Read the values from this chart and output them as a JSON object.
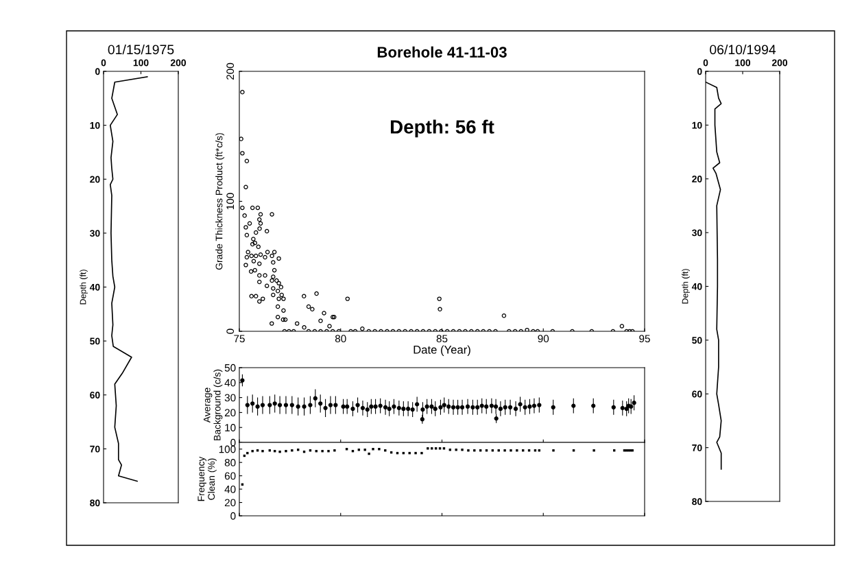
{
  "chart_data": [
    {
      "type": "line",
      "title": "01/15/1975",
      "ylabel": "Depth (ft)",
      "xlim": [
        0,
        200
      ],
      "xticks": [
        0,
        100,
        200
      ],
      "ylim": [
        80,
        0
      ],
      "yticks": [
        0,
        10,
        20,
        30,
        40,
        50,
        60,
        70,
        80
      ],
      "marker": "none",
      "series": [
        {
          "color": "#000000",
          "x": [
            117,
            30,
            22,
            37,
            18,
            25,
            20,
            22,
            25,
            18,
            22,
            20,
            22,
            25,
            30,
            22,
            25,
            22,
            26,
            75,
            50,
            30,
            34,
            30,
            40,
            40,
            48,
            40,
            90
          ],
          "values": [
            1,
            2,
            5,
            8,
            10,
            13,
            16,
            18,
            20,
            21,
            23,
            30,
            35,
            38,
            40,
            43,
            47,
            49,
            51,
            53,
            56,
            58,
            62,
            66,
            69,
            72,
            73,
            75,
            76
          ]
        }
      ]
    },
    {
      "type": "scatter",
      "title": "Borehole 41-11-03",
      "xlabel": "Date (Year)",
      "ylabel": "Grade Thickness Product (ft*c/s)",
      "annotations": [
        "Depth: 56 ft"
      ],
      "xlim": [
        75,
        95
      ],
      "xticks": [
        75,
        80,
        85,
        90,
        95
      ],
      "ylim": [
        0,
        200
      ],
      "yticks": [
        0,
        100,
        200
      ],
      "marker": "circle",
      "series": [
        {
          "color": "#000000",
          "x": [
            75.15,
            75.09,
            75.15,
            75.37,
            75.32,
            75.15,
            75.26,
            75.65,
            75.91,
            76.05,
            76.61,
            75.99,
            76.05,
            75.51,
            75.32,
            75.37,
            75.82,
            76.36,
            76.0,
            75.69,
            75.77,
            75.65,
            75.94,
            75.43,
            75.37,
            75.6,
            75.82,
            76.05,
            76.39,
            76.73,
            76.27,
            76.61,
            76.95,
            75.71,
            75.32,
            75.99,
            76.67,
            76.73,
            75.58,
            75.77,
            75.99,
            76.27,
            76.67,
            76.84,
            75.99,
            76.61,
            76.95,
            76.36,
            76.67,
            77.06,
            76.9,
            76.67,
            77.09,
            75.6,
            75.82,
            76.16,
            75.99,
            76.95,
            77.18,
            76.9,
            77.18,
            78.19,
            78.81,
            78.42,
            78.6,
            80.34,
            79.18,
            79.68,
            76.9,
            77.27,
            84.87,
            84.9,
            88.06,
            76.6,
            77.16,
            77.85,
            79.01,
            79.45,
            79.61,
            77.23,
            77.45,
            77.68,
            78.2,
            78.42,
            78.72,
            79.01,
            79.31,
            79.61,
            79.91,
            80.5,
            80.72,
            81.07,
            81.39,
            81.69,
            81.99,
            82.29,
            82.58,
            82.88,
            83.18,
            83.48,
            83.77,
            84.07,
            84.37,
            84.67,
            84.96,
            85.26,
            85.56,
            85.86,
            86.15,
            86.45,
            86.75,
            87.04,
            87.34,
            87.64,
            88.31,
            88.61,
            88.9,
            89.2,
            89.5,
            89.72,
            90.46,
            91.43,
            92.39,
            93.44,
            93.88,
            94.11,
            94.26,
            94.4
          ],
          "values": [
            184,
            148,
            137,
            131,
            111,
            95,
            89,
            95,
            95,
            90,
            90,
            86,
            83,
            83,
            80,
            74,
            76,
            77,
            79,
            71,
            68,
            67,
            65,
            61,
            57,
            58,
            58,
            59,
            61,
            61,
            57,
            58,
            56,
            54,
            51,
            52,
            53,
            47,
            46,
            47,
            43,
            43,
            42,
            39,
            38,
            39,
            37,
            35,
            33,
            34,
            31,
            28,
            28,
            27,
            27,
            25,
            23,
            25,
            25,
            19,
            16,
            27,
            29,
            19,
            17,
            25,
            14,
            11,
            11,
            9,
            25,
            17,
            12,
            6,
            9,
            6,
            8,
            4,
            11,
            0,
            0,
            0,
            3,
            0,
            0,
            0,
            0,
            0,
            0,
            0,
            0,
            2,
            0,
            0,
            0,
            0,
            0,
            0,
            0,
            0,
            0,
            0,
            0,
            0,
            0,
            0,
            0,
            0,
            0,
            0,
            0,
            0,
            0,
            0,
            0,
            0,
            0,
            1,
            0,
            0,
            0,
            0,
            0,
            0,
            4,
            0,
            0,
            0
          ]
        }
      ]
    },
    {
      "type": "line",
      "title": "06/10/1994",
      "ylabel": "Depth (ft)",
      "xlim": [
        0,
        200
      ],
      "xticks": [
        0,
        100,
        200
      ],
      "ylim": [
        80,
        0
      ],
      "yticks": [
        0,
        10,
        20,
        30,
        40,
        50,
        60,
        70,
        80
      ],
      "marker": "none",
      "series": [
        {
          "color": "#000000",
          "x": [
            0,
            30,
            35,
            42,
            25,
            25,
            30,
            38,
            20,
            28,
            40,
            30,
            32,
            32,
            30,
            35,
            35,
            30,
            35,
            42,
            38,
            30,
            42,
            42
          ],
          "values": [
            2,
            3,
            5,
            6,
            7,
            10,
            15,
            17,
            18,
            19,
            22,
            25,
            35,
            40,
            48,
            50,
            55,
            60,
            62,
            65,
            68,
            69,
            71,
            74
          ]
        }
      ]
    },
    {
      "type": "scatter",
      "ylabel": "Average\nBackground (c/s)",
      "xlim": [
        75,
        95
      ],
      "xticks": [
        {
          "value": 75,
          "label": null
        },
        {
          "value": 80,
          "label": null
        },
        {
          "value": 85,
          "label": null
        },
        {
          "value": 90,
          "label": null
        },
        {
          "value": 95,
          "label": null
        }
      ],
      "ylim": [
        0,
        50
      ],
      "yticks": [
        0,
        10,
        20,
        30,
        40,
        50
      ],
      "tick_labels": "y",
      "marker": "circle",
      "series": [
        {
          "color": "#000000",
          "x": [
            75.15,
            75.4,
            75.65,
            75.9,
            76.15,
            76.5,
            76.75,
            77.0,
            77.3,
            77.6,
            77.9,
            78.2,
            78.5,
            78.75,
            79.0,
            79.25,
            79.5,
            79.75,
            80.13,
            80.32,
            80.6,
            80.84,
            81.09,
            81.32,
            81.51,
            81.72,
            81.96,
            82.21,
            82.4,
            82.63,
            82.88,
            83.1,
            83.33,
            83.55,
            83.77,
            84.03,
            84.05,
            84.26,
            84.49,
            84.67,
            84.93,
            85.11,
            85.33,
            85.56,
            85.78,
            86.0,
            86.27,
            86.52,
            86.75,
            86.97,
            87.19,
            87.45,
            87.66,
            87.68,
            87.89,
            88.12,
            88.37,
            88.64,
            88.86,
            89.1,
            89.33,
            89.55,
            89.8,
            90.49,
            91.49,
            92.47,
            93.47,
            93.91,
            94.11,
            94.21,
            94.33,
            94.48
          ],
          "values": [
            41.5,
            25,
            26,
            24,
            25,
            25,
            26,
            25,
            25,
            25,
            24,
            24,
            25,
            29.5,
            26,
            23,
            25,
            25,
            24,
            24,
            22.5,
            25,
            23,
            22,
            24,
            24,
            24.5,
            23.5,
            22.5,
            24,
            23,
            22.5,
            22.5,
            22,
            25.5,
            15.5,
            22,
            24,
            24,
            22.5,
            23.5,
            25,
            24,
            23.5,
            23.5,
            23.5,
            24,
            23.5,
            23.5,
            24.5,
            24,
            24.5,
            24,
            16,
            22.5,
            23.5,
            23.5,
            22.5,
            25.5,
            23.5,
            24,
            24.5,
            25,
            23.5,
            24.5,
            24.5,
            23.5,
            23,
            22.5,
            24.5,
            24,
            26.5
          ],
          "errors": [
            4,
            6,
            6,
            6,
            6,
            6,
            6,
            6,
            6,
            6,
            6,
            6,
            6,
            6,
            6,
            6,
            6,
            6,
            5,
            5,
            5,
            5,
            5,
            5,
            5,
            5,
            5,
            5,
            5,
            5,
            5,
            5,
            5,
            5,
            5,
            3,
            5,
            5,
            5,
            5,
            5,
            5,
            5,
            5,
            5,
            5,
            5,
            5,
            5,
            5,
            5,
            5,
            5,
            3,
            5,
            5,
            5,
            5,
            5,
            5,
            5,
            5,
            5,
            5,
            5,
            5,
            5,
            5,
            5,
            5,
            5,
            5
          ]
        }
      ]
    },
    {
      "type": "scatter",
      "ylabel": "Frequency\nClean (%)",
      "xlim": [
        75,
        95
      ],
      "xticks": [
        {
          "value": 75,
          "label": null
        },
        {
          "value": 80,
          "label": null
        },
        {
          "value": 85,
          "label": null
        },
        {
          "value": 90,
          "label": null
        },
        {
          "value": 95,
          "label": null
        }
      ],
      "ylim": [
        0,
        110
      ],
      "yticks": [
        0,
        20,
        40,
        60,
        80,
        100
      ],
      "tick_labels": "y",
      "marker": "square",
      "series": [
        {
          "color": "#000000",
          "x": [
            75.15,
            75.25,
            75.4,
            75.65,
            75.9,
            76.15,
            76.5,
            76.75,
            77.0,
            77.3,
            77.6,
            77.9,
            78.2,
            78.5,
            78.8,
            79.1,
            79.4,
            79.7,
            80.3,
            80.6,
            80.9,
            81.2,
            81.4,
            81.6,
            81.9,
            82.2,
            82.5,
            82.8,
            83.1,
            83.4,
            83.7,
            84.0,
            84.3,
            84.5,
            84.7,
            84.9,
            85.1,
            85.4,
            85.7,
            86.0,
            86.3,
            86.6,
            86.9,
            87.2,
            87.5,
            87.8,
            88.1,
            88.4,
            88.7,
            89.0,
            89.3,
            89.6,
            89.8,
            90.5,
            91.5,
            92.5,
            93.5,
            94.0,
            94.1,
            94.2,
            94.3,
            94.4
          ],
          "values": [
            47,
            90,
            94,
            97,
            98,
            97,
            98,
            97,
            96,
            97,
            98,
            99,
            96,
            98,
            97,
            97,
            97,
            98,
            100,
            97,
            99,
            99,
            93,
            100,
            100,
            98,
            95,
            94,
            94,
            94,
            94,
            94,
            101,
            101,
            101,
            101,
            101,
            99,
            99,
            99,
            98,
            98,
            98,
            98,
            98,
            98,
            98,
            98,
            98,
            98,
            98,
            98,
            98,
            98,
            98,
            98,
            98,
            98,
            98,
            98,
            98,
            98
          ]
        }
      ]
    }
  ]
}
